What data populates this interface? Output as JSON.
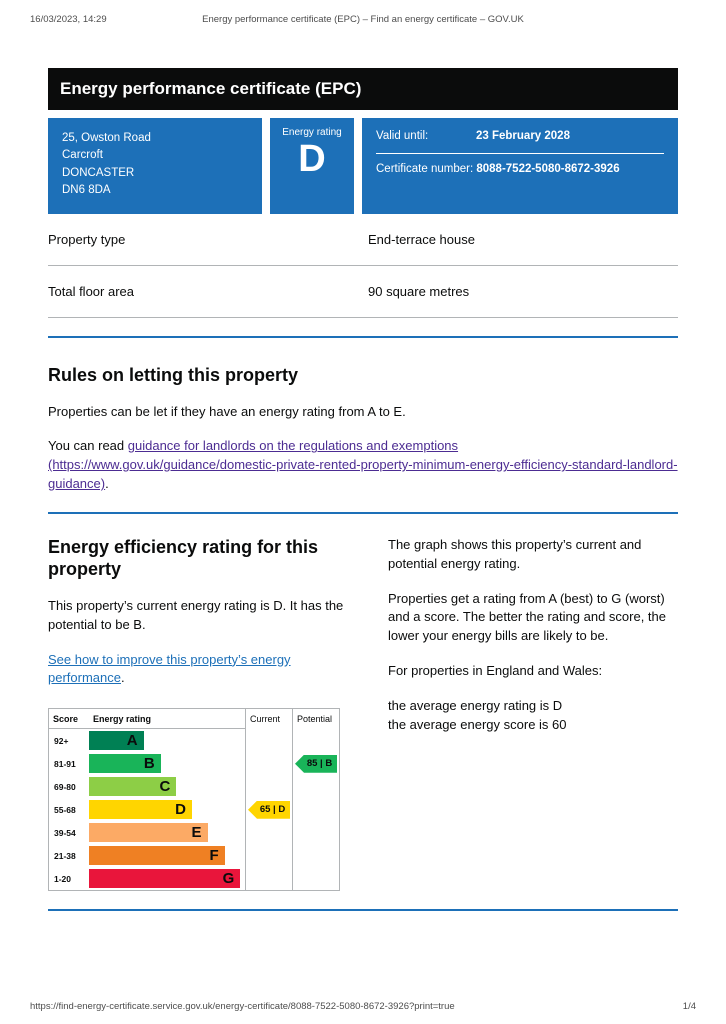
{
  "print_header": {
    "timestamp": "16/03/2023, 14:29",
    "page_title": "Energy performance certificate (EPC) – Find an energy certificate – GOV.UK"
  },
  "banner": {
    "title": "Energy performance certificate (EPC)"
  },
  "certificate": {
    "address_lines": [
      "25, Owston Road",
      "Carcroft",
      "DONCASTER",
      "DN6 8DA"
    ],
    "rating_label": "Energy rating",
    "rating": "D",
    "valid_until_label": "Valid until:",
    "valid_until": "23 February 2028",
    "certificate_number_label": "Certificate number:",
    "certificate_number": "8088-7522-5080-8672-3926"
  },
  "details": {
    "rows": [
      {
        "label": "Property type",
        "value": "End-terrace house"
      },
      {
        "label": "Total floor area",
        "value": "90 square metres"
      }
    ]
  },
  "letting": {
    "heading": "Rules on letting this property",
    "para1": "Properties can be let if they have an energy rating from A to E.",
    "para2_prefix": "You can read ",
    "link_text": "guidance for landlords on the regulations and exemptions (https://www.gov.uk/guidance/domestic-private-rented-property-minimum-energy-efficiency-standard-landlord-guidance)",
    "para2_suffix": "."
  },
  "efficiency": {
    "heading": "Energy efficiency rating for this property",
    "para1": "This property’s current energy rating is D. It has the potential to be B.",
    "link_text": "See how to improve this property’s energy performance",
    "link_suffix": ".",
    "right_para1": "The graph shows this property’s current and potential energy rating.",
    "right_para2": "Properties get a rating from A (best) to G (worst) and a score. The better the rating and score, the lower your energy bills are likely to be.",
    "right_para3": "For properties in England and Wales:",
    "right_para4_line1": "the average energy rating is D",
    "right_para4_line2": "the average energy score is 60"
  },
  "chart_data": {
    "type": "epc-rating-bands",
    "headers": {
      "score": "Score",
      "rating": "Energy rating",
      "current": "Current",
      "potential": "Potential"
    },
    "bands": [
      {
        "score_range": "92+",
        "letter": "A",
        "color": "#008054",
        "width": "35%"
      },
      {
        "score_range": "81-91",
        "letter": "B",
        "color": "#19b459",
        "width": "46%"
      },
      {
        "score_range": "69-80",
        "letter": "C",
        "color": "#8dce46",
        "width": "56%"
      },
      {
        "score_range": "55-68",
        "letter": "D",
        "color": "#ffd500",
        "width": "66%"
      },
      {
        "score_range": "39-54",
        "letter": "E",
        "color": "#fcaa65",
        "width": "76%"
      },
      {
        "score_range": "21-38",
        "letter": "F",
        "color": "#ef8023",
        "width": "87%"
      },
      {
        "score_range": "1-20",
        "letter": "G",
        "color": "#e9153b",
        "width": "97%"
      }
    ],
    "current": {
      "score": 65,
      "letter": "D",
      "label": "65 | D",
      "color": "#ffd500"
    },
    "potential": {
      "score": 85,
      "letter": "B",
      "label": "85 | B",
      "color": "#19b459"
    }
  },
  "colors": {
    "brand_blue": "#1d70b8",
    "banner_black": "#0b0c0c",
    "link_blue": "#1d70b8",
    "link_visited_purple": "#4c2c92",
    "border_grey": "#b1b4b6"
  },
  "print_footer": {
    "url": "https://find-energy-certificate.service.gov.uk/energy-certificate/8088-7522-5080-8672-3926?print=true",
    "page_number": "1/4"
  }
}
